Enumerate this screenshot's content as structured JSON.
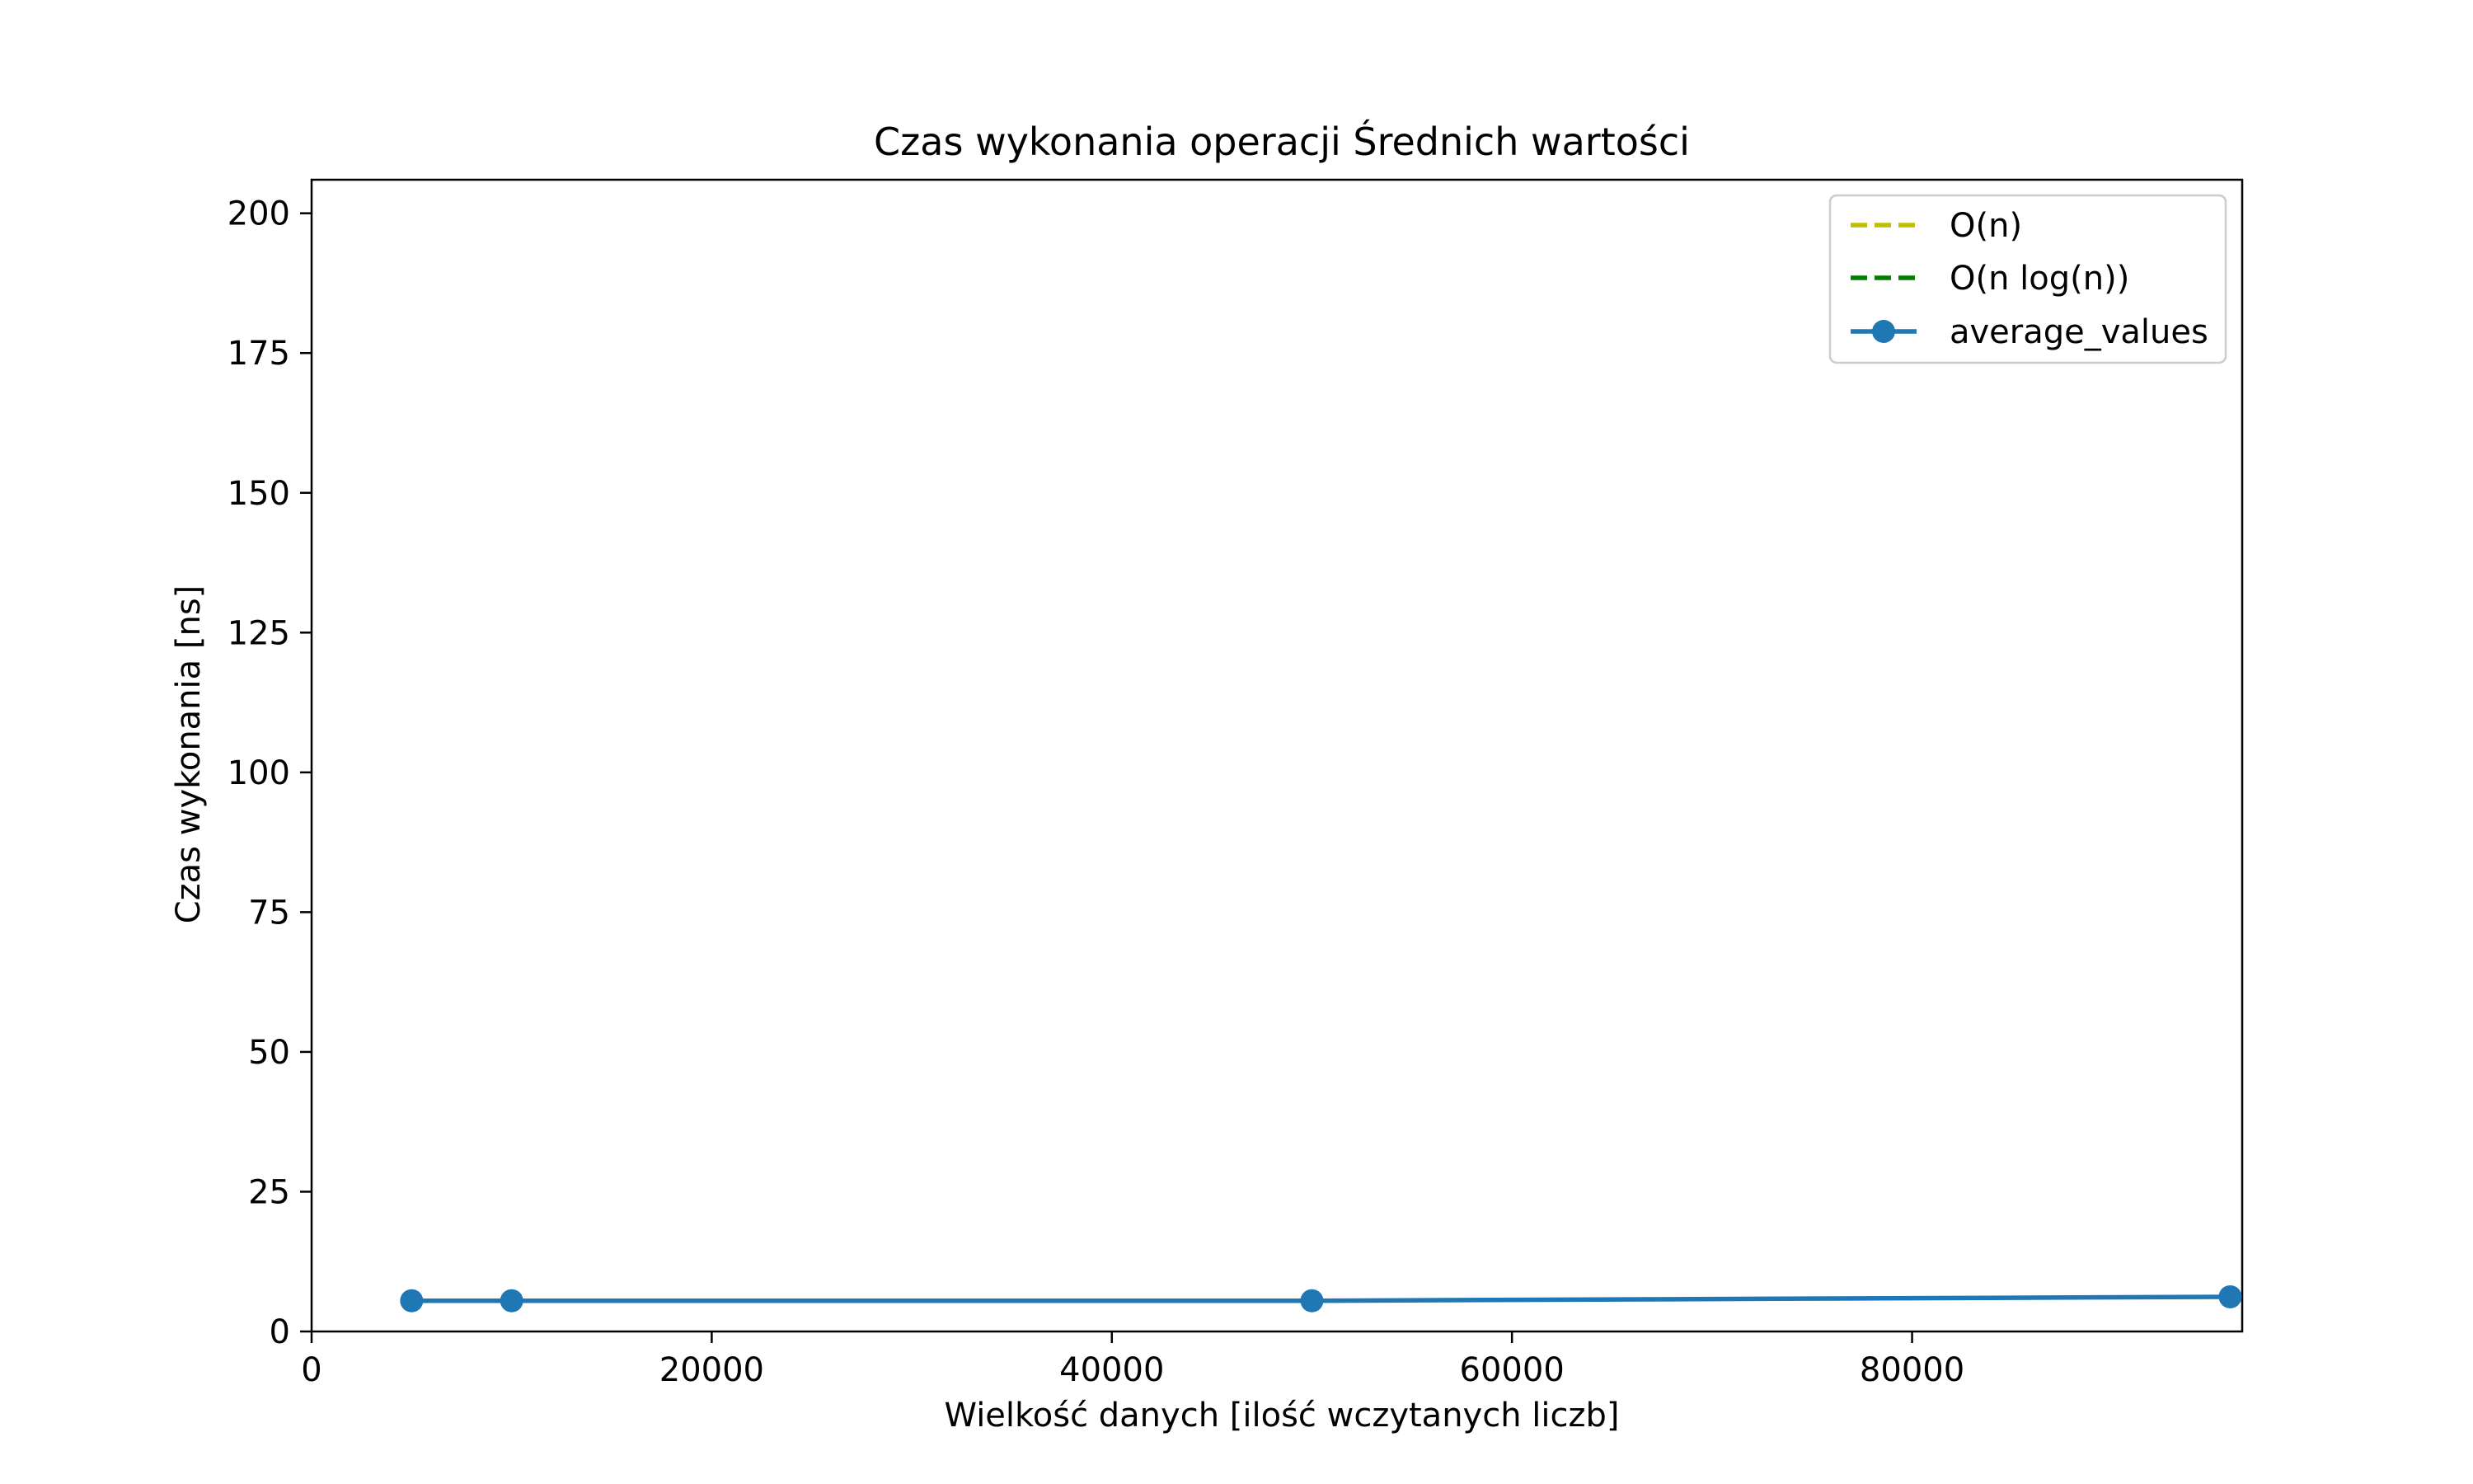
{
  "chart_data": {
    "type": "line",
    "title": "Czas wykonania operacji Średnich wartości",
    "xlabel": "Wielkość danych [ilość wczytanych liczb]",
    "ylabel": "Czas wykonania [ns]",
    "xlim": [
      0,
      96500
    ],
    "ylim": [
      0,
      206
    ],
    "xticks": [
      0,
      20000,
      40000,
      60000,
      80000
    ],
    "xtick_labels": [
      "0",
      "20000",
      "40000",
      "60000",
      "80000"
    ],
    "yticks": [
      0,
      25,
      50,
      75,
      100,
      125,
      150,
      175,
      200
    ],
    "ytick_labels": [
      "0",
      "25",
      "50",
      "75",
      100,
      "125",
      "150",
      "175",
      "200"
    ],
    "grid": false,
    "legend_position": "top-right",
    "series": [
      {
        "name": "O(n)",
        "style": "dashed",
        "color": "#bfbf00",
        "x": [],
        "y": []
      },
      {
        "name": "O(n log(n))",
        "style": "dashed",
        "color": "#008000",
        "x": [],
        "y": []
      },
      {
        "name": "average_values",
        "style": "solid-markers",
        "color": "#1f77b4",
        "x": [
          5000,
          10000,
          50000,
          95900
        ],
        "y": [
          5.5,
          5.5,
          5.5,
          6.2
        ]
      }
    ]
  }
}
